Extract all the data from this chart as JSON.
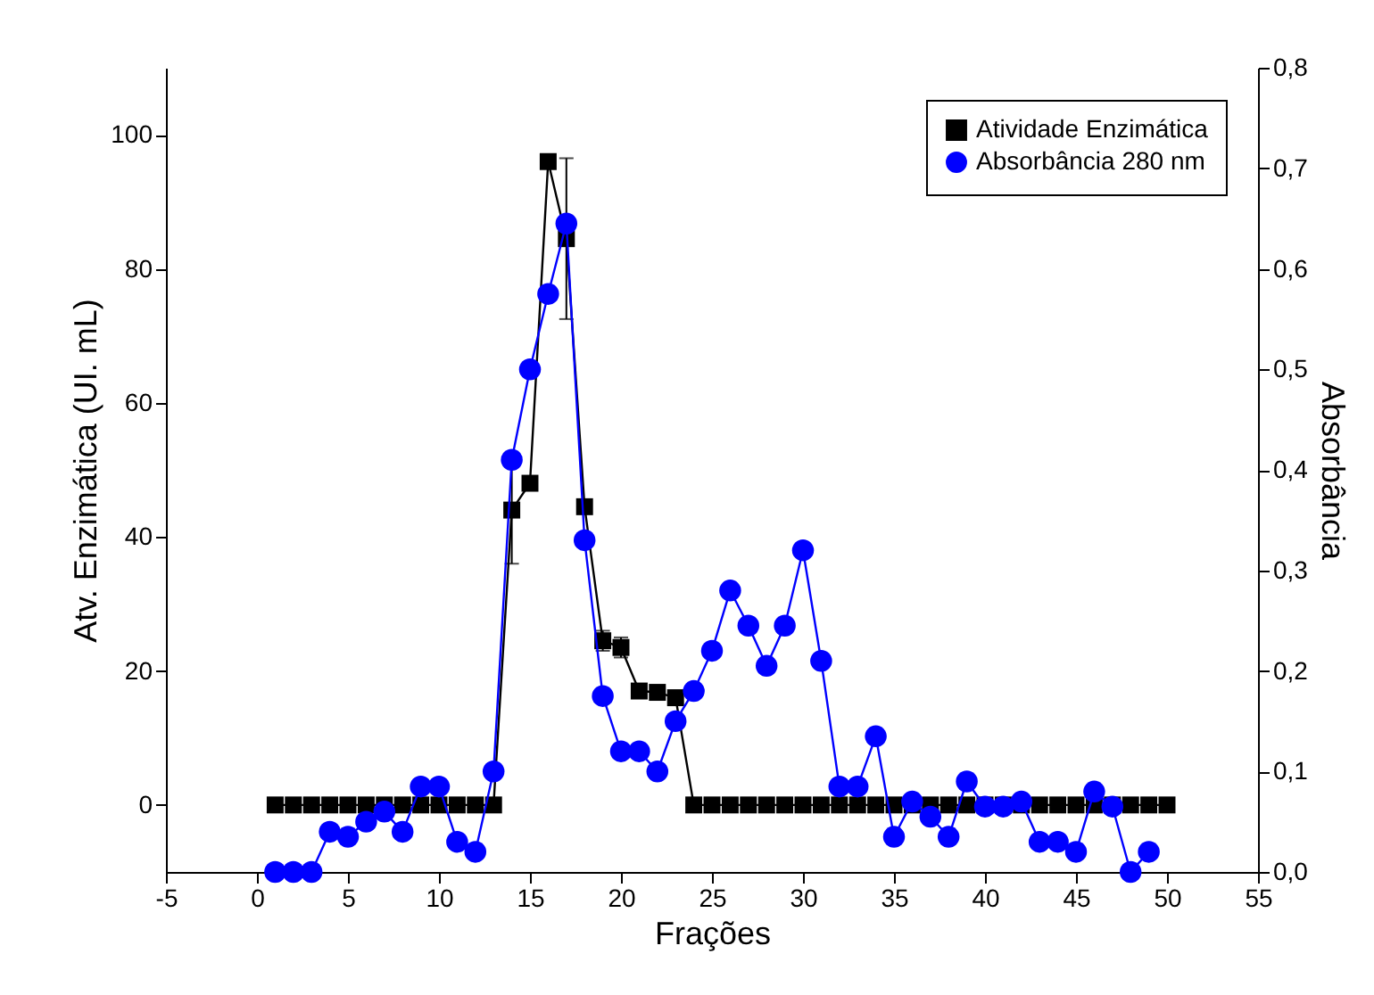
{
  "chart_data": {
    "type": "line",
    "xlabel": "Frações",
    "ylabel": "Atv. Enzimática (UI. mL)",
    "y2label": "Absorbância",
    "x": [
      1,
      2,
      3,
      4,
      5,
      6,
      7,
      8,
      9,
      10,
      11,
      12,
      13,
      14,
      15,
      16,
      17,
      18,
      19,
      20,
      21,
      22,
      23,
      24,
      25,
      26,
      27,
      28,
      29,
      30,
      31,
      32,
      33,
      34,
      35,
      36,
      37,
      38,
      39,
      40,
      41,
      42,
      43,
      44,
      45,
      46,
      47,
      48,
      49,
      50
    ],
    "series": [
      {
        "name": "Atividade Enzimática",
        "color": "#000000",
        "marker": "square",
        "values": [
          0,
          0,
          0,
          0,
          0,
          0,
          0,
          0,
          0,
          0,
          0,
          0,
          0,
          44,
          48,
          96,
          84.5,
          44.5,
          24.5,
          23.5,
          17,
          16.8,
          16,
          0,
          0,
          0,
          0,
          0,
          0,
          0,
          0,
          0,
          0,
          0,
          0,
          0,
          0,
          0,
          0,
          0,
          0,
          0,
          0,
          0,
          0,
          0,
          0,
          0,
          0,
          0
        ],
        "errors": [
          null,
          null,
          null,
          null,
          null,
          null,
          null,
          null,
          null,
          null,
          null,
          null,
          null,
          8,
          null,
          null,
          12,
          null,
          1.5,
          1.5,
          null,
          null,
          null,
          null,
          null,
          null,
          null,
          null,
          null,
          null,
          null,
          null,
          null,
          null,
          null,
          null,
          null,
          null,
          null,
          null,
          null,
          null,
          null,
          null,
          null,
          null,
          null,
          null,
          null,
          null
        ]
      },
      {
        "name": "Absorbância 280 nm",
        "color": "#0000ff",
        "marker": "circle",
        "axis": "y2",
        "x": [
          1,
          2,
          3,
          4,
          5,
          6,
          7,
          8,
          9,
          10,
          11,
          12,
          13,
          14,
          15,
          16,
          17,
          18,
          19,
          20,
          21,
          22,
          23,
          24,
          25,
          26,
          27,
          28,
          29,
          30,
          31,
          32,
          33,
          34,
          35,
          36,
          37,
          38,
          39,
          40,
          41,
          42,
          43,
          44,
          45,
          46,
          47,
          48,
          49
        ],
        "values": [
          0,
          0,
          0,
          0.04,
          0.035,
          0.05,
          0.06,
          0.04,
          0.085,
          0.085,
          0.03,
          0.02,
          0.1,
          0.41,
          0.5,
          0.575,
          0.645,
          0.33,
          0.175,
          0.12,
          0.12,
          0.1,
          0.15,
          0.18,
          0.22,
          0.28,
          0.245,
          0.205,
          0.245,
          0.32,
          0.21,
          0.085,
          0.085,
          0.135,
          0.035,
          0.07,
          0.055,
          0.035,
          0.09,
          0.065,
          0.065,
          0.07,
          0.03,
          0.03,
          0.02,
          0.08,
          0.065,
          0,
          0.02
        ]
      }
    ],
    "xlim": [
      -5,
      55
    ],
    "xticks": [
      -5,
      0,
      5,
      10,
      15,
      20,
      25,
      30,
      35,
      40,
      45,
      50,
      55
    ],
    "ylim": [
      -10,
      110
    ],
    "yticks": [
      0,
      20,
      40,
      60,
      80,
      100
    ],
    "y2lim": [
      0,
      0.8
    ],
    "y2ticks": [
      {
        "value": 0,
        "label": "0,0"
      },
      {
        "value": 0.1,
        "label": "0,1"
      },
      {
        "value": 0.2,
        "label": "0,2"
      },
      {
        "value": 0.3,
        "label": "0,3"
      },
      {
        "value": 0.4,
        "label": "0,4"
      },
      {
        "value": 0.5,
        "label": "0,5"
      },
      {
        "value": 0.6,
        "label": "0,6"
      },
      {
        "value": 0.7,
        "label": "0,7"
      },
      {
        "value": 0.8,
        "label": "0,8"
      }
    ],
    "legend": "top right",
    "grid": false,
    "line_style": "solid"
  }
}
